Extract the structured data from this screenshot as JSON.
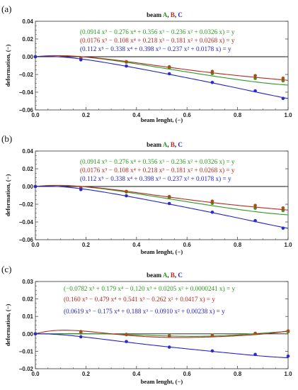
{
  "figure": {
    "panels": [
      {
        "label": "(a)"
      },
      {
        "label": "(b)"
      },
      {
        "label": "(c)"
      }
    ]
  },
  "colors": {
    "A": "#2a9a1f",
    "B": "#b5281f",
    "C": "#2323c8",
    "A_points": "#4b8f25",
    "B_points": "#a64f1a",
    "C_points": "#2a2ad0"
  },
  "chart_data": [
    {
      "type": "line",
      "panel": "(a)",
      "title_parts": [
        "beam ",
        "A",
        ", ",
        "B",
        ", ",
        "C"
      ],
      "xlabel": "beam lenght, (−)",
      "ylabel": "deformation, (−)",
      "xlim": [
        0,
        1.0
      ],
      "ylim": [
        -0.06,
        0.04
      ],
      "xticks": [
        "0.0",
        "0.2",
        "0.4",
        "0.6",
        "0.8",
        "1.0"
      ],
      "yticks": [
        "0.04",
        "0.02",
        "0.00",
        "−0.02",
        "−0.04",
        "−0.06"
      ],
      "ytick_values": [
        0.04,
        0.02,
        0.0,
        -0.02,
        -0.04,
        -0.06
      ],
      "x_points": [
        0,
        0.18,
        0.36,
        0.53,
        0.7,
        0.87,
        0.98
      ],
      "series": [
        {
          "name": "A",
          "coefficients": [
            0.0914,
            -0.276,
            0.356,
            -0.236,
            0.0326,
            0
          ],
          "equation": "(0.0914 x⁵ − 0.276 x⁴ + 0.356 x³ − 0.236 x² + 0.0326 x) = y",
          "points": [
            0,
            -0.0018,
            -0.0062,
            -0.0125,
            -0.019,
            -0.0245,
            -0.0272
          ]
        },
        {
          "name": "B",
          "coefficients": [
            0.0176,
            -0.108,
            0.218,
            -0.181,
            0.0268,
            0
          ],
          "equation": "(0.0176 x⁵ − 0.108 x⁴ + 0.218 x³ − 0.181 x² + 0.0268 x) = y",
          "points": [
            0,
            -0.0016,
            -0.0055,
            -0.0113,
            -0.0165,
            -0.0213,
            -0.0242
          ]
        },
        {
          "name": "C",
          "coefficients": [
            0.112,
            -0.338,
            0.398,
            -0.237,
            0.0178,
            0
          ],
          "equation": "(0.112 x⁵ − 0.338 x⁴ + 0.398 x³ − 0.237 x² + 0.0178 x) = y",
          "points": [
            0,
            -0.0035,
            -0.0105,
            -0.0192,
            -0.029,
            -0.0385,
            -0.047
          ]
        }
      ]
    },
    {
      "type": "line",
      "panel": "(b)",
      "title_parts": [
        "beam ",
        "A",
        ", ",
        "B",
        ", ",
        "C"
      ],
      "xlabel": "beam lenght, (−)",
      "ylabel": "deformation, (−)",
      "xlim": [
        0,
        1.0
      ],
      "ylim": [
        -0.06,
        0.04
      ],
      "xticks": [
        "0.0",
        "0.2",
        "0.4",
        "0.6",
        "0.8",
        "1.0"
      ],
      "yticks": [
        "0.04",
        "0.02",
        "0.00",
        "−0.02",
        "−0.04",
        "−0.06"
      ],
      "ytick_values": [
        0.04,
        0.02,
        0.0,
        -0.02,
        -0.04,
        -0.06
      ],
      "x_points": [
        0,
        0.18,
        0.36,
        0.53,
        0.7,
        0.87,
        0.98
      ],
      "series": [
        {
          "name": "A",
          "coefficients": [
            0.0914,
            -0.276,
            0.356,
            -0.236,
            0.0326,
            0
          ],
          "equation": "(0.0914 x⁵ − 0.276 x⁴ + 0.356 x³ − 0.236 x² + 0.0326 x) = y",
          "points": [
            0,
            -0.0018,
            -0.0062,
            -0.0125,
            -0.019,
            -0.0245,
            -0.0272
          ]
        },
        {
          "name": "B",
          "coefficients": [
            0.0176,
            -0.108,
            0.218,
            -0.181,
            0.0268,
            0
          ],
          "equation": "(0.0176 x⁵ − 0.108 x⁴ + 0.218 x³ − 0.181 x² + 0.0268 x) = y",
          "points": [
            0,
            -0.0016,
            -0.0055,
            -0.0113,
            -0.0165,
            -0.0213,
            -0.0242
          ]
        },
        {
          "name": "C",
          "coefficients": [
            0.112,
            -0.338,
            0.398,
            -0.237,
            0.0178,
            0
          ],
          "equation": "(0.112 x⁵ − 0.338 x⁴ + 0.398 x³ − 0.237 x² + 0.0178 x) = y",
          "points": [
            0,
            -0.0035,
            -0.0105,
            -0.0192,
            -0.029,
            -0.0385,
            -0.047
          ]
        }
      ]
    },
    {
      "type": "line",
      "panel": "(c)",
      "title_parts": [
        "beam ",
        "A",
        ", ",
        "B",
        ", ",
        "C"
      ],
      "xlabel": "beam lenght, (−)",
      "ylabel": "deformation, (−)",
      "xlim": [
        0,
        1.0
      ],
      "ylim": [
        -0.02,
        0.03
      ],
      "xticks": [
        "0.0",
        "0.2",
        "0.4",
        "0.6",
        "0.8",
        "1.0"
      ],
      "yticks": [
        "0.03",
        "0.02",
        "0.01",
        "0.00",
        "−0.01",
        "−0.02"
      ],
      "ytick_values": [
        0.03,
        0.02,
        0.01,
        0.0,
        -0.01,
        -0.02
      ],
      "x_points": [
        0,
        0.18,
        0.36,
        0.53,
        0.7,
        0.87,
        1.0
      ],
      "series": [
        {
          "name": "A",
          "coefficients": [
            -0.0782,
            0.179,
            -0.12,
            0.0205,
            2.41e-05,
            0
          ],
          "equation": "(−0.0782 x⁵ + 0.179 x⁴ − 0.120 x³ + 0.0205 x² + 0.0000241 x) = y",
          "points": [
            0,
            0.0005,
            -0.0005,
            -0.001,
            -0.0007,
            0.0002,
            0.0012
          ]
        },
        {
          "name": "B",
          "coefficients": [
            0.16,
            -0.479,
            0.541,
            -0.262,
            0.0417,
            0
          ],
          "equation": "(0.160 x⁵ − 0.479 x⁴ + 0.541 x³ − 0.262 x² + 0.0417 x) = y",
          "points": [
            0,
            0.0013,
            -0.0003,
            -0.0014,
            -0.001,
            0.0003,
            0.0017
          ]
        },
        {
          "name": "C",
          "coefficients": [
            0.0619,
            -0.175,
            0.188,
            -0.091,
            0.00238,
            0
          ],
          "equation": "(0.0619 x⁵ − 0.175 x⁴ + 0.188 x³ − 0.0910 x² + 0.00238 x) = y",
          "points": [
            0,
            -0.0017,
            -0.0044,
            -0.0076,
            -0.0098,
            -0.0118,
            -0.0128
          ]
        }
      ]
    }
  ]
}
